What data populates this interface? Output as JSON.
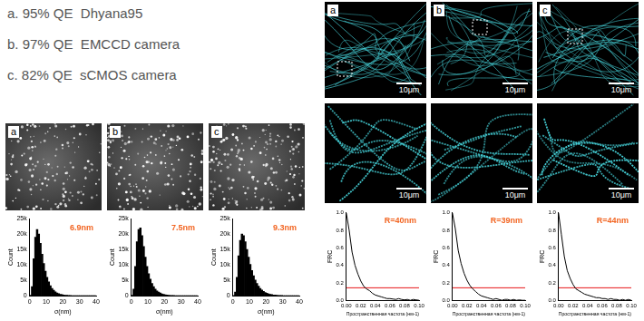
{
  "camera_list": [
    "a. 95% QE  Dhyana95",
    "b. 97% QE  EMCCD camera",
    "c. 82% QE  sCMOS camera"
  ],
  "localization_images": [
    {
      "letter": "a"
    },
    {
      "letter": "b"
    },
    {
      "letter": "c"
    }
  ],
  "microtubule_images": [
    {
      "letter": "a",
      "scale_bar": "10μm"
    },
    {
      "letter": "b",
      "scale_bar": "10μm"
    },
    {
      "letter": "c",
      "scale_bar": "10μm"
    }
  ],
  "zoom_images": [
    {
      "scale_bar": "10μm"
    },
    {
      "scale_bar": "10μm"
    },
    {
      "scale_bar": "10μm"
    }
  ],
  "chart_data": [
    {
      "type": "histogram",
      "x_label": "σ(nm)",
      "y_label": "Count",
      "color": "#000000",
      "annotation": {
        "text": "6.9nm",
        "color": "#f26522"
      },
      "bins": [
        0,
        1,
        2,
        3,
        4,
        5,
        6,
        7,
        8,
        9,
        10,
        11,
        12,
        13,
        14,
        15,
        16,
        17,
        18,
        19,
        20,
        21,
        22,
        23,
        24,
        25,
        26,
        27,
        28,
        29,
        30,
        31,
        32,
        33,
        34,
        35,
        36,
        37,
        38,
        39,
        40
      ],
      "values": [
        200,
        3000,
        12000,
        19000,
        21500,
        20000,
        17000,
        13500,
        10500,
        8000,
        6000,
        4500,
        3300,
        2400,
        1800,
        1300,
        950,
        700,
        500,
        380,
        280,
        200,
        150,
        110,
        80,
        60,
        45,
        35,
        25,
        20,
        15,
        10,
        8,
        6,
        5,
        4,
        3,
        2,
        1,
        1
      ],
      "xlim": [
        0,
        40
      ],
      "xticks": [
        0,
        10,
        20,
        30,
        40
      ],
      "ylim": [
        0,
        25000
      ],
      "yticks": [
        0,
        {
          "value": 5000,
          "label": "5k"
        },
        {
          "value": 10000,
          "label": "10k"
        },
        {
          "value": 15000,
          "label": "15k"
        },
        {
          "value": 20000,
          "label": "20k"
        },
        {
          "value": 25000,
          "label": "25k"
        }
      ],
      "grid": false
    },
    {
      "type": "histogram",
      "x_label": "σ(nm)",
      "y_label": "Count",
      "color": "#000000",
      "annotation": {
        "text": "7.5nm",
        "color": "#f26522"
      },
      "bins": [
        0,
        1,
        2,
        3,
        4,
        5,
        6,
        7,
        8,
        9,
        10,
        11,
        12,
        13,
        14,
        15,
        16,
        17,
        18,
        19,
        20,
        21,
        22,
        23,
        24,
        25,
        26,
        27,
        28,
        29,
        30,
        31,
        32,
        33,
        34,
        35,
        36,
        37,
        38,
        39,
        40
      ],
      "values": [
        150,
        2200,
        9500,
        17500,
        21500,
        22000,
        19500,
        16000,
        12500,
        9500,
        7200,
        5400,
        4000,
        3000,
        2200,
        1600,
        1200,
        900,
        650,
        480,
        350,
        260,
        190,
        140,
        100,
        75,
        55,
        40,
        30,
        22,
        16,
        12,
        9,
        7,
        5,
        4,
        3,
        2,
        1,
        1
      ],
      "xlim": [
        0,
        40
      ],
      "xticks": [
        0,
        10,
        20,
        30,
        40
      ],
      "ylim": [
        0,
        25000
      ],
      "yticks": [
        0,
        {
          "value": 5000,
          "label": "5k"
        },
        {
          "value": 10000,
          "label": "10k"
        },
        {
          "value": 15000,
          "label": "15k"
        },
        {
          "value": 20000,
          "label": "20k"
        },
        {
          "value": 25000,
          "label": "25k"
        }
      ],
      "grid": false
    },
    {
      "type": "histogram",
      "x_label": "σ(nm)",
      "y_label": "Count",
      "color": "#000000",
      "annotation": {
        "text": "9.3nm",
        "color": "#f26522"
      },
      "bins": [
        0,
        1,
        2,
        3,
        4,
        5,
        6,
        7,
        8,
        9,
        10,
        11,
        12,
        13,
        14,
        15,
        16,
        17,
        18,
        19,
        20,
        21,
        22,
        23,
        24,
        25,
        26,
        27,
        28,
        29,
        30,
        31,
        32,
        33,
        34,
        35,
        36,
        37,
        38,
        39,
        40
      ],
      "values": [
        100,
        1200,
        6000,
        13000,
        18000,
        20000,
        19500,
        17500,
        15000,
        12500,
        10200,
        8200,
        6500,
        5100,
        4000,
        3100,
        2400,
        1850,
        1400,
        1100,
        850,
        650,
        500,
        380,
        290,
        220,
        170,
        130,
        100,
        75,
        55,
        40,
        30,
        22,
        16,
        12,
        8,
        5,
        3,
        2
      ],
      "xlim": [
        0,
        40
      ],
      "xticks": [
        0,
        10,
        20,
        30,
        40
      ],
      "ylim": [
        0,
        25000
      ],
      "yticks": [
        0,
        {
          "value": 5000,
          "label": "5k"
        },
        {
          "value": 10000,
          "label": "10k"
        },
        {
          "value": 15000,
          "label": "15k"
        },
        {
          "value": 20000,
          "label": "20k"
        },
        {
          "value": 25000,
          "label": "25k"
        }
      ],
      "grid": false
    },
    {
      "type": "line",
      "x_label": "Пространственная частота (нм-1)",
      "y_label": "FRC",
      "color": "#000000",
      "annotation": {
        "text": "R=40nm",
        "color": "#f26522"
      },
      "threshold_line": {
        "value": 0.143,
        "color": "#e8171a"
      },
      "x": [
        0,
        0.004,
        0.008,
        0.012,
        0.016,
        0.02,
        0.024,
        0.028,
        0.032,
        0.036,
        0.04,
        0.044,
        0.048,
        0.052,
        0.056,
        0.06,
        0.064,
        0.068,
        0.072,
        0.076,
        0.08,
        0.084,
        0.088,
        0.092,
        0.096,
        0.1
      ],
      "values": [
        1.0,
        0.8,
        0.55,
        0.4,
        0.3,
        0.22,
        0.16,
        0.13,
        0.11,
        0.08,
        0.06,
        0.05,
        0.04,
        0.03,
        0.02,
        0.02,
        0.015,
        0.01,
        0.02,
        0.01,
        0.005,
        0.01,
        0.0,
        0.01,
        0.005,
        0.0
      ],
      "xlim": [
        0,
        0.1
      ],
      "xticks": [
        {
          "value": 0,
          "label": "0.00"
        },
        {
          "value": 0.02,
          "label": "0.02"
        },
        {
          "value": 0.04,
          "label": "0.04"
        },
        {
          "value": 0.06,
          "label": "0.06"
        },
        {
          "value": 0.08,
          "label": "0.08"
        },
        {
          "value": 0.1,
          "label": "0.10"
        }
      ],
      "ylim": [
        0,
        1
      ],
      "yticks": [
        {
          "value": 0,
          "label": "0.0"
        },
        0.2,
        0.4,
        0.6,
        0.8,
        {
          "value": 1,
          "label": "1.0"
        }
      ],
      "grid": false
    },
    {
      "type": "line",
      "x_label": "Пространственная частота (нм-1)",
      "y_label": "FRC",
      "color": "#000000",
      "annotation": {
        "text": "R=39nm",
        "color": "#f26522"
      },
      "threshold_line": {
        "value": 0.143,
        "color": "#e8171a"
      },
      "x": [
        0,
        0.004,
        0.008,
        0.012,
        0.016,
        0.02,
        0.024,
        0.028,
        0.032,
        0.036,
        0.04,
        0.044,
        0.048,
        0.052,
        0.056,
        0.06,
        0.064,
        0.068,
        0.072,
        0.076,
        0.08,
        0.084,
        0.088,
        0.092,
        0.096,
        0.1
      ],
      "values": [
        1.0,
        0.82,
        0.57,
        0.42,
        0.31,
        0.23,
        0.17,
        0.13,
        0.1,
        0.07,
        0.05,
        0.04,
        0.03,
        0.02,
        0.01,
        0.02,
        0.01,
        0.0,
        0.01,
        0.01,
        0.0,
        0.01,
        0.0,
        0.005,
        0.0,
        0.0
      ],
      "xlim": [
        0,
        0.1
      ],
      "xticks": [
        {
          "value": 0,
          "label": "0.00"
        },
        {
          "value": 0.02,
          "label": "0.02"
        },
        {
          "value": 0.04,
          "label": "0.04"
        },
        {
          "value": 0.06,
          "label": "0.06"
        },
        {
          "value": 0.08,
          "label": "0.08"
        },
        {
          "value": 0.1,
          "label": "0.10"
        }
      ],
      "ylim": [
        0,
        1
      ],
      "yticks": [
        {
          "value": 0,
          "label": "0.0"
        },
        0.2,
        0.4,
        0.6,
        0.8,
        {
          "value": 1,
          "label": "1.0"
        }
      ],
      "grid": false
    },
    {
      "type": "line",
      "x_label": "Пространственная частота (нм-1)",
      "y_label": "FRC",
      "color": "#000000",
      "annotation": {
        "text": "R=44nm",
        "color": "#f26522"
      },
      "threshold_line": {
        "value": 0.143,
        "color": "#e8171a"
      },
      "x": [
        0,
        0.004,
        0.008,
        0.012,
        0.016,
        0.02,
        0.024,
        0.028,
        0.032,
        0.036,
        0.04,
        0.044,
        0.048,
        0.052,
        0.056,
        0.06,
        0.064,
        0.068,
        0.072,
        0.076,
        0.08,
        0.084,
        0.088,
        0.092,
        0.096,
        0.1
      ],
      "values": [
        1.0,
        0.75,
        0.5,
        0.34,
        0.25,
        0.18,
        0.13,
        0.11,
        0.09,
        0.07,
        0.06,
        0.05,
        0.04,
        0.03,
        0.03,
        0.02,
        0.02,
        0.01,
        0.02,
        0.01,
        0.01,
        0.0,
        0.01,
        0.0,
        0.01,
        0.0
      ],
      "xlim": [
        0,
        0.1
      ],
      "xticks": [
        {
          "value": 0,
          "label": "0.00"
        },
        {
          "value": 0.02,
          "label": "0.02"
        },
        {
          "value": 0.04,
          "label": "0.04"
        },
        {
          "value": 0.06,
          "label": "0.06"
        },
        {
          "value": 0.08,
          "label": "0.08"
        },
        {
          "value": 0.1,
          "label": "0.10"
        }
      ],
      "ylim": [
        0,
        1
      ],
      "yticks": [
        {
          "value": 0,
          "label": "0.0"
        },
        0.2,
        0.4,
        0.6,
        0.8,
        {
          "value": 1,
          "label": "1.0"
        }
      ],
      "grid": false
    }
  ]
}
